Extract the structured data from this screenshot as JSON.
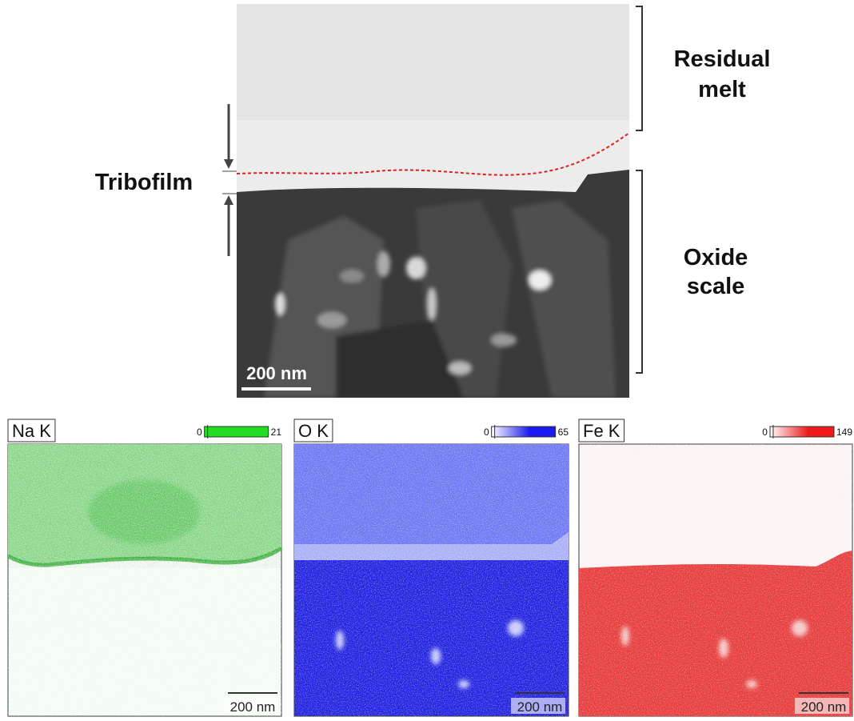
{
  "micrograph": {
    "residual_melt": [
      "Residual",
      "melt"
    ],
    "tribofilm": "Tribofilm",
    "oxide_scale": [
      "Oxide",
      "scale"
    ],
    "scale_bar": "200 nm"
  },
  "maps": [
    {
      "element": "Na K",
      "scale_min": 0,
      "scale_max": 21,
      "scale_bar": "200 nm"
    },
    {
      "element": "O K",
      "scale_min": 0,
      "scale_max": 65,
      "scale_bar": "200 nm"
    },
    {
      "element": "Fe K",
      "scale_min": 0,
      "scale_max": 149,
      "scale_bar": "200 nm"
    }
  ]
}
